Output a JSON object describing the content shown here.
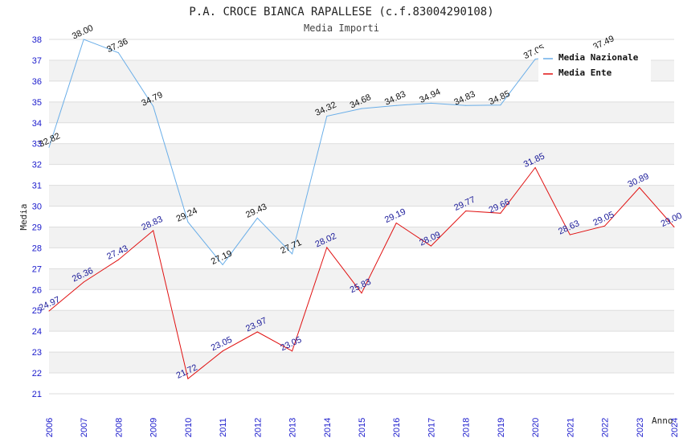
{
  "chart_data": {
    "type": "line",
    "title": "P.A. CROCE BIANCA RAPALLESE (c.f.83004290108)",
    "subtitle": "Media Importi",
    "xlabel": "Anno",
    "ylabel": "Media",
    "ylim": [
      21,
      38
    ],
    "yticks": [
      21,
      22,
      23,
      24,
      25,
      26,
      27,
      28,
      29,
      30,
      31,
      32,
      33,
      34,
      35,
      36,
      37,
      38
    ],
    "categories": [
      "2006",
      "2007",
      "2008",
      "2009",
      "2010",
      "2011",
      "2012",
      "2013",
      "2014",
      "2015",
      "2016",
      "2017",
      "2018",
      "2019",
      "2020",
      "2021",
      "2022",
      "2023",
      "2024"
    ],
    "legend_position": "top-right",
    "series": [
      {
        "name": "Media Nazionale",
        "color": "#6aaee8",
        "label_color": "#111111",
        "values": [
          32.82,
          38.0,
          37.36,
          34.79,
          29.24,
          27.19,
          29.43,
          27.71,
          34.32,
          34.68,
          34.83,
          34.94,
          34.83,
          34.85,
          37.05,
          null,
          37.49,
          null,
          null
        ],
        "labels": [
          "32.82",
          "38.00",
          "37.36",
          "34.79",
          "29.24",
          "27.19",
          "29.43",
          "27.71",
          "34.32",
          "34.68",
          "34.83",
          "34.94",
          "34.83",
          "34.85",
          "37.05",
          null,
          "37.49",
          null,
          null
        ]
      },
      {
        "name": "Media Ente",
        "color": "#e01010",
        "label_color": "#1a1a99",
        "values": [
          24.97,
          26.36,
          27.43,
          28.83,
          21.72,
          23.05,
          23.97,
          23.05,
          28.02,
          25.83,
          29.19,
          28.09,
          29.77,
          29.66,
          31.85,
          28.63,
          29.05,
          30.89,
          29.0
        ],
        "labels": [
          "24.97",
          "26.36",
          "27.43",
          "28.83",
          "21.72",
          "23.05",
          "23.97",
          "23.05",
          "28.02",
          "25.83",
          "29.19",
          "28.09",
          "29.77",
          "29.66",
          "31.85",
          "28.63",
          "29.05",
          "30.89",
          "29.00"
        ]
      }
    ]
  }
}
